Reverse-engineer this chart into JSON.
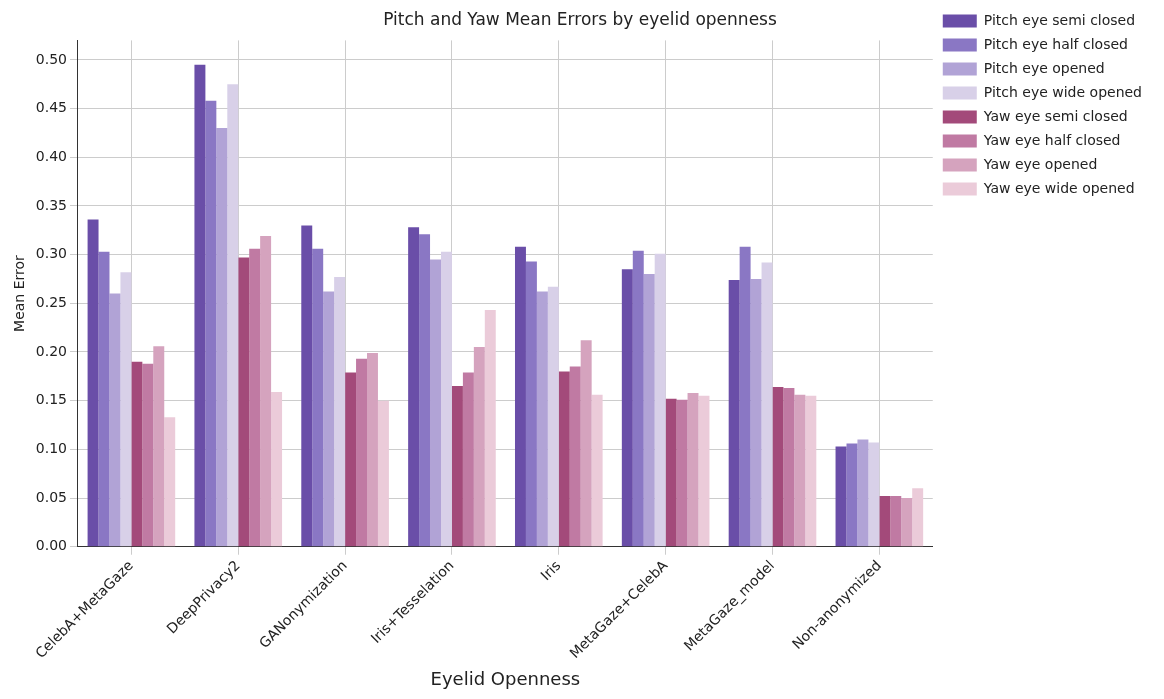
{
  "chart_data": {
    "type": "bar",
    "title": "Pitch and Yaw Mean Errors by eyelid openness",
    "xlabel": "Eyelid Openness",
    "ylabel": "Mean Error",
    "categories": [
      "CelebA+MetaGaze",
      "DeepPrivacy2",
      "GANonymization",
      "Iris+Tesselation",
      "Iris",
      "MetaGaze+CelebA",
      "MetaGaze_model",
      "Non-anonymized"
    ],
    "series": [
      {
        "name": "Pitch eye semi closed",
        "color": "#6a4ea8",
        "values": [
          0.336,
          0.495,
          0.33,
          0.328,
          0.308,
          0.285,
          0.274,
          0.103
        ]
      },
      {
        "name": "Pitch eye half closed",
        "color": "#8a77c4",
        "values": [
          0.303,
          0.458,
          0.306,
          0.321,
          0.293,
          0.304,
          0.308,
          0.106
        ]
      },
      {
        "name": "Pitch eye opened",
        "color": "#b1a3d6",
        "values": [
          0.26,
          0.43,
          0.262,
          0.295,
          0.262,
          0.28,
          0.275,
          0.11
        ]
      },
      {
        "name": "Pitch eye wide opened",
        "color": "#d8d0e8",
        "values": [
          0.282,
          0.475,
          0.277,
          0.303,
          0.267,
          0.301,
          0.292,
          0.107
        ]
      },
      {
        "name": "Yaw eye semi closed",
        "color": "#a34a7a",
        "values": [
          0.19,
          0.297,
          0.179,
          0.165,
          0.18,
          0.152,
          0.164,
          0.052
        ]
      },
      {
        "name": "Yaw eye half closed",
        "color": "#c07aa3",
        "values": [
          0.188,
          0.306,
          0.193,
          0.179,
          0.185,
          0.151,
          0.163,
          0.052
        ]
      },
      {
        "name": "Yaw eye opened",
        "color": "#d5a3be",
        "values": [
          0.206,
          0.319,
          0.199,
          0.205,
          0.212,
          0.158,
          0.156,
          0.05
        ]
      },
      {
        "name": "Yaw eye wide opened",
        "color": "#ebcbd9",
        "values": [
          0.133,
          0.159,
          0.15,
          0.243,
          0.156,
          0.155,
          0.155,
          0.06
        ]
      }
    ],
    "ylim": [
      0,
      0.52
    ],
    "yticks": [
      {
        "value": 0,
        "label": "0.00"
      },
      {
        "value": 0.05,
        "label": "0.05"
      },
      {
        "value": 0.1,
        "label": "0.10"
      },
      {
        "value": 0.15,
        "label": "0.15"
      },
      {
        "value": 0.2,
        "label": "0.20"
      },
      {
        "value": 0.25,
        "label": "0.25"
      },
      {
        "value": 0.3,
        "label": "0.30"
      },
      {
        "value": 0.35,
        "label": "0.35"
      },
      {
        "value": 0.4,
        "label": "0.40"
      },
      {
        "value": 0.45,
        "label": "0.45"
      },
      {
        "value": 0.5,
        "label": "0.50"
      }
    ],
    "grid": true,
    "legend": "top right"
  }
}
